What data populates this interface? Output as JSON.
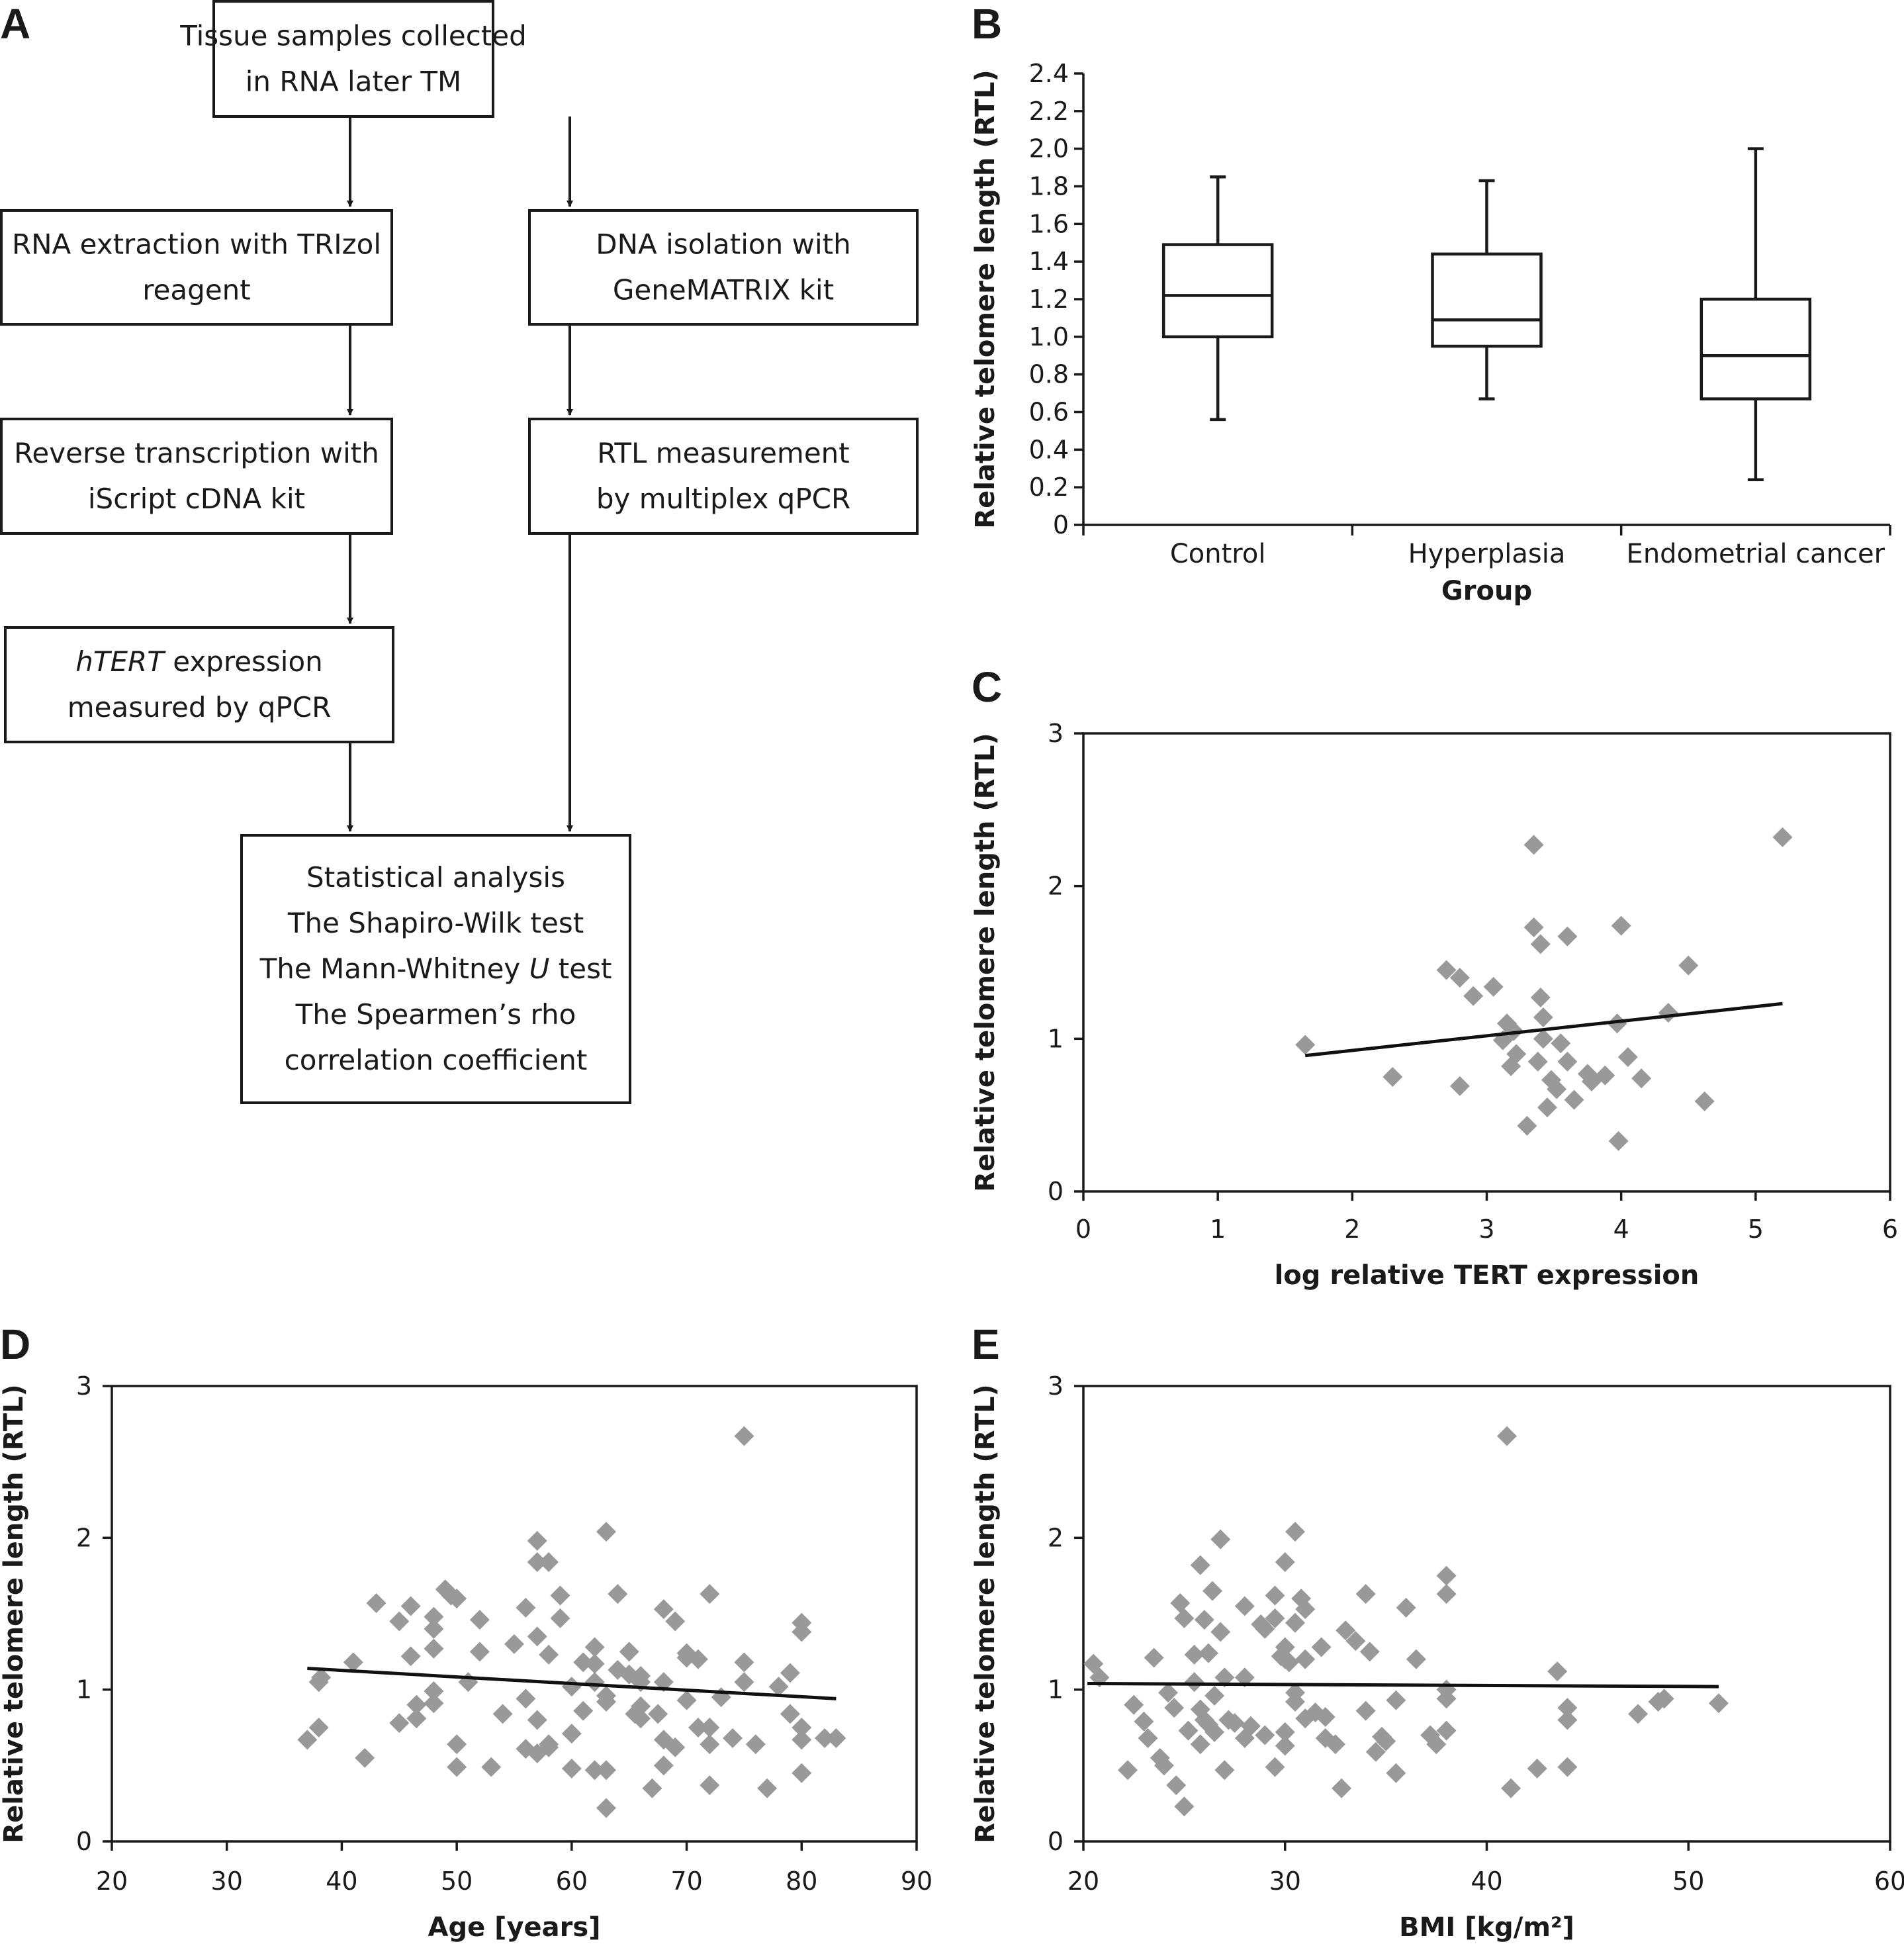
{
  "panels": {
    "A": "A",
    "B": "B",
    "C": "C",
    "D": "D",
    "E": "E"
  },
  "flowchart": {
    "nodes": [
      {
        "id": "n1",
        "lines": [
          {
            "text": "Tissue samples collected"
          },
          {
            "text": "in RNA later TM"
          }
        ]
      },
      {
        "id": "n2",
        "lines": [
          {
            "text": "RNA extraction with TRIzol"
          },
          {
            "text": "reagent"
          }
        ]
      },
      {
        "id": "n3",
        "lines": [
          {
            "text": "DNA isolation with"
          },
          {
            "text": "GeneMATRIX kit"
          }
        ]
      },
      {
        "id": "n4",
        "lines": [
          {
            "text": "Reverse transcription with"
          },
          {
            "text": "iScript cDNA kit"
          }
        ]
      },
      {
        "id": "n5",
        "lines": [
          {
            "text": "RTL measurement"
          },
          {
            "text": "by multiplex qPCR"
          }
        ]
      },
      {
        "id": "n6",
        "lines": [
          {
            "text": "hTERT",
            "italic": true,
            "rest": " expression"
          },
          {
            "text": "measured by qPCR"
          }
        ]
      },
      {
        "id": "n7",
        "lines": [
          {
            "text": "Statistical analysis"
          },
          {
            "text": "The Shapiro-Wilk test"
          },
          {
            "text": "The Mann-Whitney ",
            "italic_tail": "U",
            "rest": " test"
          },
          {
            "text": "The Spearmen’s rho"
          },
          {
            "text": "correlation coefficient"
          }
        ]
      }
    ],
    "edges": [
      [
        "n1",
        "n2"
      ],
      [
        "n1",
        "n3"
      ],
      [
        "n2",
        "n4"
      ],
      [
        "n3",
        "n5"
      ],
      [
        "n4",
        "n6"
      ],
      [
        "n6",
        "n7"
      ],
      [
        "n5",
        "n7"
      ]
    ]
  },
  "chart_data": [
    {
      "panel": "B",
      "type": "box",
      "xlabel": "Group",
      "ylabel": "Relative telomere length (RTL)",
      "ylim": [
        0,
        2.4
      ],
      "yticks": [
        "0",
        "0.2",
        "0.4",
        "0.6",
        "0.8",
        "1.0",
        "1.2",
        "1.4",
        "1.6",
        "1.8",
        "2.0",
        "2.2",
        "2.4"
      ],
      "categories": [
        "Control",
        "Hyperplasia",
        "Endometrial cancer"
      ],
      "boxes": [
        {
          "min": 0.56,
          "q1": 1.0,
          "median": 1.22,
          "q3": 1.49,
          "max": 1.85
        },
        {
          "min": 0.67,
          "q1": 0.95,
          "median": 1.09,
          "q3": 1.44,
          "max": 1.83
        },
        {
          "min": 0.24,
          "q1": 0.67,
          "median": 0.9,
          "q3": 1.2,
          "max": 2.0
        }
      ]
    },
    {
      "panel": "C",
      "type": "scatter",
      "xlabel": "log relative TERT expression",
      "ylabel": "Relative telomere length (RTL)",
      "xlim": [
        0,
        6
      ],
      "ylim": [
        0,
        3
      ],
      "xticks": [
        "0",
        "1",
        "2",
        "3",
        "4",
        "5",
        "6"
      ],
      "yticks": [
        "0",
        "1",
        "2",
        "3"
      ],
      "trendline": {
        "x": [
          1.65,
          5.2
        ],
        "y": [
          0.89,
          1.23
        ]
      },
      "points": [
        [
          1.65,
          0.96
        ],
        [
          2.3,
          0.75
        ],
        [
          2.7,
          1.45
        ],
        [
          2.8,
          1.4
        ],
        [
          2.8,
          0.69
        ],
        [
          2.9,
          1.28
        ],
        [
          3.05,
          1.34
        ],
        [
          3.12,
          0.99
        ],
        [
          3.15,
          1.1
        ],
        [
          3.18,
          0.82
        ],
        [
          3.2,
          1.05
        ],
        [
          3.22,
          0.9
        ],
        [
          3.3,
          0.43
        ],
        [
          3.35,
          2.27
        ],
        [
          3.35,
          1.73
        ],
        [
          3.38,
          0.85
        ],
        [
          3.4,
          1.62
        ],
        [
          3.4,
          1.27
        ],
        [
          3.42,
          1.14
        ],
        [
          3.42,
          1.0
        ],
        [
          3.45,
          0.55
        ],
        [
          3.48,
          0.73
        ],
        [
          3.52,
          0.67
        ],
        [
          3.55,
          0.97
        ],
        [
          3.6,
          1.67
        ],
        [
          3.6,
          0.85
        ],
        [
          3.65,
          0.6
        ],
        [
          3.75,
          0.77
        ],
        [
          3.78,
          0.72
        ],
        [
          3.88,
          0.76
        ],
        [
          3.97,
          1.1
        ],
        [
          3.98,
          0.33
        ],
        [
          4.0,
          1.74
        ],
        [
          4.05,
          0.88
        ],
        [
          4.15,
          0.74
        ],
        [
          4.35,
          1.17
        ],
        [
          4.5,
          1.48
        ],
        [
          4.62,
          0.59
        ],
        [
          5.2,
          2.32
        ]
      ]
    },
    {
      "panel": "D",
      "type": "scatter",
      "xlabel": "Age [years]",
      "ylabel": "Relative telomere length (RTL)",
      "xlim": [
        20,
        90
      ],
      "ylim": [
        0,
        3
      ],
      "xticks": [
        "20",
        "30",
        "40",
        "50",
        "60",
        "70",
        "80",
        "90"
      ],
      "yticks": [
        "0",
        "1",
        "2",
        "3"
      ],
      "trendline": {
        "x": [
          37,
          83
        ],
        "y": [
          1.14,
          0.94
        ]
      },
      "points": [
        [
          37,
          0.67
        ],
        [
          38,
          1.05
        ],
        [
          38,
          0.75
        ],
        [
          38.2,
          1.08
        ],
        [
          41,
          1.18
        ],
        [
          42,
          0.55
        ],
        [
          43,
          1.57
        ],
        [
          45,
          1.45
        ],
        [
          45,
          0.78
        ],
        [
          46,
          1.55
        ],
        [
          46,
          1.22
        ],
        [
          46.5,
          0.81
        ],
        [
          46.5,
          0.9
        ],
        [
          48,
          1.48
        ],
        [
          48,
          1.4
        ],
        [
          48,
          1.27
        ],
        [
          48,
          0.99
        ],
        [
          48,
          0.91
        ],
        [
          49,
          1.66
        ],
        [
          49.5,
          1.62
        ],
        [
          50,
          1.6
        ],
        [
          50,
          0.64
        ],
        [
          50,
          0.49
        ],
        [
          51,
          1.05
        ],
        [
          52,
          1.46
        ],
        [
          52,
          1.25
        ],
        [
          53,
          0.49
        ],
        [
          54,
          0.84
        ],
        [
          55,
          1.3
        ],
        [
          56,
          1.54
        ],
        [
          56,
          0.94
        ],
        [
          56,
          0.61
        ],
        [
          57,
          1.98
        ],
        [
          57,
          1.84
        ],
        [
          57,
          1.35
        ],
        [
          57,
          0.8
        ],
        [
          57,
          0.58
        ],
        [
          58,
          1.84
        ],
        [
          58,
          1.23
        ],
        [
          58,
          0.64
        ],
        [
          58,
          0.62
        ],
        [
          59,
          1.62
        ],
        [
          59,
          1.47
        ],
        [
          60,
          1.02
        ],
        [
          60,
          0.71
        ],
        [
          60,
          0.48
        ],
        [
          61,
          1.18
        ],
        [
          61,
          0.86
        ],
        [
          62,
          1.28
        ],
        [
          62,
          1.17
        ],
        [
          62,
          1.05
        ],
        [
          62,
          0.47
        ],
        [
          63,
          2.04
        ],
        [
          63,
          0.96
        ],
        [
          63,
          0.92
        ],
        [
          63,
          0.47
        ],
        [
          63,
          0.22
        ],
        [
          64,
          1.63
        ],
        [
          64,
          1.13
        ],
        [
          65,
          1.25
        ],
        [
          65,
          1.1
        ],
        [
          65.5,
          0.84
        ],
        [
          66,
          1.09
        ],
        [
          66,
          1.05
        ],
        [
          66,
          0.89
        ],
        [
          66,
          0.81
        ],
        [
          67,
          0.35
        ],
        [
          67.5,
          0.84
        ],
        [
          68,
          1.53
        ],
        [
          68,
          1.05
        ],
        [
          68,
          0.67
        ],
        [
          68,
          0.5
        ],
        [
          69,
          1.45
        ],
        [
          69,
          0.62
        ],
        [
          70,
          1.24
        ],
        [
          70,
          1.21
        ],
        [
          70,
          0.93
        ],
        [
          71,
          1.2
        ],
        [
          71,
          0.75
        ],
        [
          72,
          1.63
        ],
        [
          72,
          0.75
        ],
        [
          72,
          0.64
        ],
        [
          72,
          0.37
        ],
        [
          73,
          0.95
        ],
        [
          74,
          0.68
        ],
        [
          75,
          1.18
        ],
        [
          75,
          1.05
        ],
        [
          75,
          2.67
        ],
        [
          76,
          0.64
        ],
        [
          77,
          0.35
        ],
        [
          78,
          1.02
        ],
        [
          79,
          1.11
        ],
        [
          79,
          0.84
        ],
        [
          80,
          1.44
        ],
        [
          80,
          1.38
        ],
        [
          80,
          0.75
        ],
        [
          80,
          0.67
        ],
        [
          80,
          0.45
        ],
        [
          82,
          0.68
        ],
        [
          83,
          0.68
        ]
      ]
    },
    {
      "panel": "E",
      "type": "scatter",
      "xlabel": "BMI [kg/m²]",
      "ylabel": "Relative telomere length (RTL)",
      "xlim": [
        20,
        60
      ],
      "ylim": [
        0,
        3
      ],
      "xticks": [
        "20",
        "30",
        "40",
        "50",
        "60"
      ],
      "yticks": [
        "0",
        "1",
        "2",
        "3"
      ],
      "trendline": {
        "x": [
          20.2,
          51.5
        ],
        "y": [
          1.04,
          1.02
        ]
      },
      "points": [
        [
          20.5,
          1.17
        ],
        [
          20.8,
          1.08
        ],
        [
          22.2,
          0.47
        ],
        [
          22.5,
          0.9
        ],
        [
          23,
          0.79
        ],
        [
          23.2,
          0.68
        ],
        [
          23.5,
          1.21
        ],
        [
          23.8,
          0.55
        ],
        [
          24,
          0.5
        ],
        [
          24.2,
          0.98
        ],
        [
          24.5,
          0.88
        ],
        [
          24.6,
          0.37
        ],
        [
          24.8,
          1.57
        ],
        [
          25,
          0.23
        ],
        [
          25,
          1.47
        ],
        [
          25.2,
          0.73
        ],
        [
          25.5,
          1.23
        ],
        [
          25.5,
          1.05
        ],
        [
          25.8,
          1.82
        ],
        [
          25.8,
          0.87
        ],
        [
          25.8,
          0.64
        ],
        [
          26,
          1.46
        ],
        [
          26,
          0.8
        ],
        [
          26.2,
          1.24
        ],
        [
          26.2,
          0.77
        ],
        [
          26.4,
          1.65
        ],
        [
          26.5,
          0.96
        ],
        [
          26.5,
          0.72
        ],
        [
          26.8,
          1.99
        ],
        [
          26.8,
          1.38
        ],
        [
          27,
          1.08
        ],
        [
          27,
          0.47
        ],
        [
          27.2,
          0.8
        ],
        [
          27.5,
          0.78
        ],
        [
          28,
          1.55
        ],
        [
          28,
          1.08
        ],
        [
          28,
          0.68
        ],
        [
          28.3,
          0.76
        ],
        [
          28.8,
          1.43
        ],
        [
          29,
          1.4
        ],
        [
          29,
          0.7
        ],
        [
          29.5,
          1.62
        ],
        [
          29.5,
          1.47
        ],
        [
          29.5,
          0.49
        ],
        [
          29.8,
          1.22
        ],
        [
          30,
          1.84
        ],
        [
          30,
          1.28
        ],
        [
          30,
          1.2
        ],
        [
          30,
          0.72
        ],
        [
          30,
          0.63
        ],
        [
          30.2,
          1.18
        ],
        [
          30.5,
          2.04
        ],
        [
          30.5,
          1.44
        ],
        [
          30.5,
          0.98
        ],
        [
          30.5,
          0.92
        ],
        [
          30.8,
          1.6
        ],
        [
          31,
          1.53
        ],
        [
          31,
          1.2
        ],
        [
          31,
          0.81
        ],
        [
          31.5,
          0.85
        ],
        [
          31.8,
          1.28
        ],
        [
          32,
          0.68
        ],
        [
          32,
          0.82
        ],
        [
          32.5,
          0.64
        ],
        [
          32.8,
          0.35
        ],
        [
          33,
          1.39
        ],
        [
          33.5,
          1.32
        ],
        [
          34,
          1.63
        ],
        [
          34,
          0.86
        ],
        [
          34.2,
          1.25
        ],
        [
          34.5,
          0.59
        ],
        [
          34.8,
          0.69
        ],
        [
          35,
          0.66
        ],
        [
          35.5,
          0.45
        ],
        [
          35.5,
          0.93
        ],
        [
          36,
          1.54
        ],
        [
          36.5,
          1.2
        ],
        [
          37.2,
          0.7
        ],
        [
          37.5,
          0.64
        ],
        [
          38,
          1.75
        ],
        [
          38,
          1.63
        ],
        [
          38,
          1.0
        ],
        [
          38,
          0.94
        ],
        [
          38,
          0.73
        ],
        [
          41,
          2.67
        ],
        [
          41.2,
          0.35
        ],
        [
          42.5,
          0.48
        ],
        [
          43.5,
          1.12
        ],
        [
          44,
          0.88
        ],
        [
          44,
          0.8
        ],
        [
          44,
          0.49
        ],
        [
          47.5,
          0.84
        ],
        [
          48.5,
          0.92
        ],
        [
          48.8,
          0.94
        ],
        [
          51.5,
          0.91
        ]
      ]
    }
  ]
}
